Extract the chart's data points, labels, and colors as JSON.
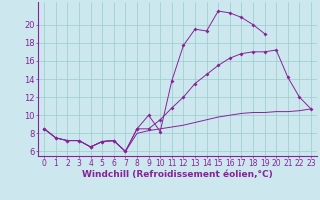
{
  "bg_color": "#cce8ee",
  "line_color": "#882299",
  "grid_color": "#99cccc",
  "xlabel": "Windchill (Refroidissement éolien,°C)",
  "xlabel_fontsize": 6.5,
  "xtick_fontsize": 5.5,
  "ytick_fontsize": 6.0,
  "xlim": [
    -0.5,
    23.5
  ],
  "ylim": [
    5.5,
    22.5
  ],
  "yticks": [
    6,
    8,
    10,
    12,
    14,
    16,
    18,
    20
  ],
  "xticks": [
    0,
    1,
    2,
    3,
    4,
    5,
    6,
    7,
    8,
    9,
    10,
    11,
    12,
    13,
    14,
    15,
    16,
    17,
    18,
    19,
    20,
    21,
    22,
    23
  ],
  "line1_x": [
    0,
    1,
    2,
    3,
    4,
    5,
    6,
    7,
    8,
    9,
    10,
    11,
    12,
    13,
    14,
    15,
    16,
    17,
    18,
    19
  ],
  "line1_y": [
    8.5,
    7.5,
    7.2,
    7.2,
    6.5,
    7.1,
    7.2,
    6.0,
    8.5,
    10.0,
    8.2,
    13.8,
    17.7,
    19.5,
    19.3,
    21.5,
    21.3,
    20.8,
    20.0,
    19.0
  ],
  "line2_x": [
    0,
    1,
    2,
    3,
    4,
    5,
    6,
    7,
    8,
    9,
    10,
    11,
    12,
    13,
    14,
    15,
    16,
    17,
    18,
    19,
    20,
    21,
    22,
    23
  ],
  "line2_y": [
    8.5,
    7.5,
    7.2,
    7.2,
    6.5,
    7.1,
    7.2,
    6.0,
    8.5,
    8.5,
    9.5,
    10.8,
    12.0,
    13.5,
    14.5,
    15.5,
    16.3,
    16.8,
    17.0,
    17.0,
    17.2,
    14.2,
    12.0,
    10.7
  ],
  "line3_x": [
    0,
    1,
    2,
    3,
    4,
    5,
    6,
    7,
    8,
    9,
    10,
    11,
    12,
    13,
    14,
    15,
    16,
    17,
    18,
    19,
    20,
    21,
    22,
    23
  ],
  "line3_y": [
    8.5,
    7.5,
    7.2,
    7.2,
    6.5,
    7.1,
    7.2,
    6.0,
    8.0,
    8.3,
    8.5,
    8.7,
    8.9,
    9.2,
    9.5,
    9.8,
    10.0,
    10.2,
    10.3,
    10.3,
    10.4,
    10.4,
    10.5,
    10.7
  ]
}
